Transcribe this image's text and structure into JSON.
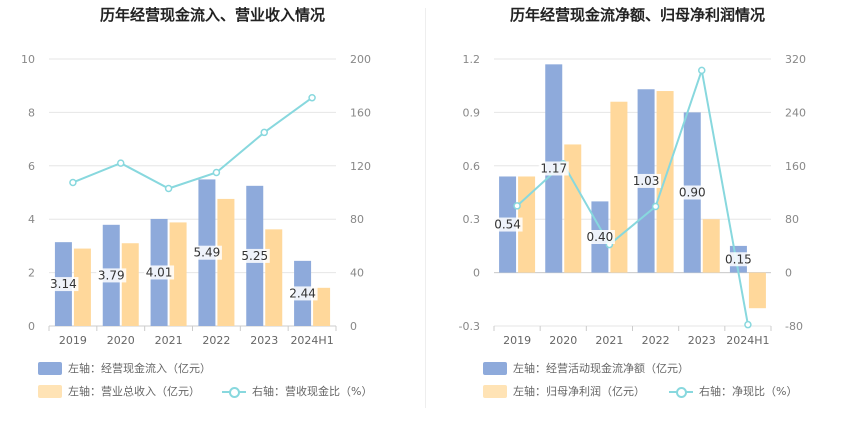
{
  "left": {
    "title": "历年经营现金流入、营业收入情况",
    "legend": {
      "bar1": "左轴：经营现金流入（亿元）",
      "bar2": "左轴：营业总收入（亿元）",
      "line": "右轴：营收现金比（%）"
    }
  },
  "right": {
    "title": "历年经营现金流净额、归母净利润情况",
    "legend": {
      "bar1": "左轴：经营活动现金流净额（亿元）",
      "bar2": "左轴：归母净利润（亿元）",
      "line": "右轴：净现比（%）"
    }
  },
  "chart_data": [
    {
      "type": "bar",
      "title": "历年经营现金流入、营业收入情况",
      "categories": [
        "2019",
        "2020",
        "2021",
        "2022",
        "2023",
        "2024H1"
      ],
      "y_left": {
        "min": 0,
        "max": 10,
        "ticks": [
          "0",
          "2",
          "4",
          "6",
          "8",
          "10"
        ]
      },
      "y_right": {
        "min": 0,
        "max": 200,
        "ticks": [
          "0",
          "40",
          "80",
          "120",
          "160",
          "200"
        ]
      },
      "grid": true,
      "legend_position": "bottom",
      "series": [
        {
          "name": "左轴：经营现金流入（亿元）",
          "kind": "bar",
          "axis": "left",
          "color": "#8eaadb",
          "values": [
            3.14,
            3.79,
            4.01,
            5.49,
            5.25,
            2.44
          ],
          "labels": [
            "3.14",
            "3.79",
            "4.01",
            "5.49",
            "5.25",
            "2.44"
          ]
        },
        {
          "name": "左轴：营业总收入（亿元）",
          "kind": "bar",
          "axis": "left",
          "color": "#ffd89b",
          "values": [
            2.9,
            3.1,
            3.88,
            4.76,
            3.62,
            1.43
          ]
        },
        {
          "name": "右轴：营收现金比（%）",
          "kind": "line",
          "axis": "right",
          "color": "#88d8de",
          "values": [
            107.5,
            122,
            103,
            115,
            145,
            171
          ]
        }
      ]
    },
    {
      "type": "bar",
      "title": "历年经营现金流净额、归母净利润情况",
      "categories": [
        "2019",
        "2020",
        "2021",
        "2022",
        "2023",
        "2024H1"
      ],
      "y_left": {
        "min": -0.3,
        "max": 1.2,
        "ticks": [
          "-0.3",
          "0",
          "0.3",
          "0.6",
          "0.9",
          "1.2"
        ]
      },
      "y_right": {
        "min": -80,
        "max": 320,
        "ticks": [
          "-80",
          "0",
          "80",
          "160",
          "240",
          "320"
        ]
      },
      "grid": true,
      "legend_position": "bottom",
      "series": [
        {
          "name": "左轴：经营活动现金流净额（亿元）",
          "kind": "bar",
          "axis": "left",
          "color": "#8eaadb",
          "values": [
            0.54,
            1.17,
            0.4,
            1.03,
            0.9,
            0.15
          ],
          "labels": [
            "0.54",
            "1.17",
            "0.40",
            "1.03",
            "0.90",
            "0.15"
          ]
        },
        {
          "name": "左轴：归母净利润（亿元）",
          "kind": "bar",
          "axis": "left",
          "color": "#ffd89b",
          "values": [
            0.54,
            0.72,
            0.96,
            1.02,
            0.3,
            -0.2
          ]
        },
        {
          "name": "右轴：净现比（%）",
          "kind": "line",
          "axis": "right",
          "color": "#88d8de",
          "values": [
            100,
            163,
            42,
            99,
            303,
            -78
          ]
        }
      ]
    }
  ]
}
